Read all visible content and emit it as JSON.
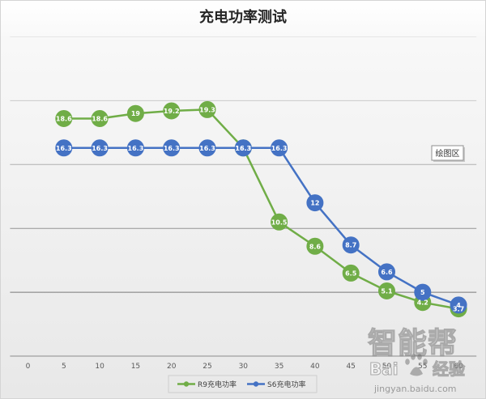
{
  "chart_data": {
    "type": "line",
    "title": "充电功率测试",
    "categories": [
      "0",
      "5",
      "10",
      "15",
      "20",
      "25",
      "30",
      "35",
      "40",
      "45",
      "50",
      "55",
      "60"
    ],
    "ylim": [
      0,
      25
    ],
    "y_major_unit": 5,
    "y_tick_labels_shown": false,
    "grid": true,
    "markers": true,
    "data_labels": true,
    "legend": "bottom",
    "series": [
      {
        "name": "R9充电功率",
        "color": "#70AD47",
        "values": [
          null,
          18.6,
          18.6,
          19,
          19.2,
          19.3,
          16.3,
          10.5,
          8.6,
          6.5,
          5.1,
          4.2,
          3.7
        ]
      },
      {
        "name": "S6充电功率",
        "color": "#4472C4",
        "values": [
          null,
          16.3,
          16.3,
          16.3,
          16.3,
          16.3,
          16.3,
          16.3,
          12,
          8.7,
          6.6,
          5,
          4
        ]
      }
    ]
  },
  "tooltip": {
    "text": "绘图区"
  },
  "watermark": {
    "site_name": "智能帮",
    "logo_text": "Bai",
    "logo_suffix": "经验",
    "url": "jingyan.baidu.com",
    "icon": "paw-icon"
  }
}
